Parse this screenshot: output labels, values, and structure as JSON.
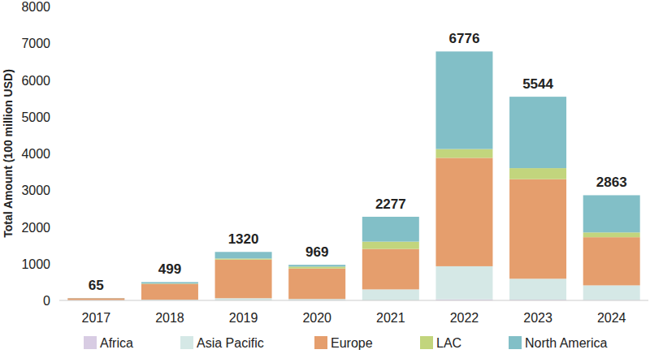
{
  "chart_data": {
    "type": "bar",
    "stacked": true,
    "y_label": "Total Amount (100 million USD)",
    "categories": [
      "2017",
      "2018",
      "2019",
      "2020",
      "2021",
      "2022",
      "2023",
      "2024"
    ],
    "series": [
      {
        "name": "Africa",
        "color": "#d8cce3",
        "values": [
          0,
          0,
          0,
          0,
          0,
          30,
          20,
          10
        ]
      },
      {
        "name": "Asia Pacific",
        "color": "#d5e8e6",
        "values": [
          5,
          20,
          60,
          40,
          300,
          900,
          570,
          400
        ]
      },
      {
        "name": "Europe",
        "color": "#e59e6d",
        "values": [
          55,
          430,
          1050,
          830,
          1100,
          2950,
          2710,
          1310
        ]
      },
      {
        "name": "LAC",
        "color": "#c2d57d",
        "values": [
          0,
          9,
          30,
          50,
          200,
          240,
          300,
          130
        ]
      },
      {
        "name": "North America",
        "color": "#82bfc7",
        "values": [
          5,
          40,
          180,
          49,
          677,
          2656,
          1944,
          1013
        ]
      }
    ],
    "totals": [
      65,
      499,
      1320,
      969,
      2277,
      6776,
      5544,
      2863
    ],
    "ylim": [
      0,
      8000
    ],
    "yticks": [
      0,
      1000,
      2000,
      3000,
      4000,
      5000,
      6000,
      7000,
      8000
    ],
    "grid": false,
    "legend": "bottom"
  }
}
